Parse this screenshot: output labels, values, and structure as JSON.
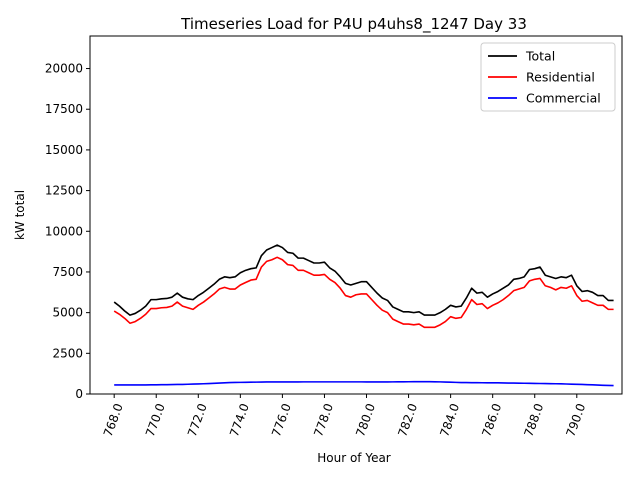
{
  "chart_data": {
    "type": "line",
    "title": "Timeseries Load for P4U p4uhs8_1247  Day 33",
    "xlabel": "Hour of Year",
    "ylabel": "kW total",
    "xlim": [
      766.85,
      792.15
    ],
    "ylim": [
      0,
      22000
    ],
    "xticks": [
      "768.0",
      "770.0",
      "772.0",
      "774.0",
      "776.0",
      "778.0",
      "780.0",
      "782.0",
      "784.0",
      "786.0",
      "788.0",
      "790.0"
    ],
    "xtick_values": [
      768,
      770,
      772,
      774,
      776,
      778,
      780,
      782,
      784,
      786,
      788,
      790
    ],
    "yticks": [
      "0",
      "2500",
      "5000",
      "7500",
      "10000",
      "12500",
      "15000",
      "17500",
      "20000"
    ],
    "ytick_values": [
      0,
      2500,
      5000,
      7500,
      10000,
      12500,
      15000,
      17500,
      20000
    ],
    "legend_position": "top-right",
    "x": [
      768.0,
      768.25,
      768.5,
      768.75,
      769.0,
      769.25,
      769.5,
      769.75,
      770.0,
      770.25,
      770.5,
      770.75,
      771.0,
      771.25,
      771.5,
      771.75,
      772.0,
      772.25,
      772.5,
      772.75,
      773.0,
      773.25,
      773.5,
      773.75,
      774.0,
      774.25,
      774.5,
      774.75,
      775.0,
      775.25,
      775.5,
      775.75,
      776.0,
      776.25,
      776.5,
      776.75,
      777.0,
      777.25,
      777.5,
      777.75,
      778.0,
      778.25,
      778.5,
      778.75,
      779.0,
      779.25,
      779.5,
      779.75,
      780.0,
      780.25,
      780.5,
      780.75,
      781.0,
      781.25,
      781.5,
      781.75,
      782.0,
      782.25,
      782.5,
      782.75,
      783.0,
      783.25,
      783.5,
      783.75,
      784.0,
      784.25,
      784.5,
      784.75,
      785.0,
      785.25,
      785.5,
      785.75,
      786.0,
      786.25,
      786.5,
      786.75,
      787.0,
      787.25,
      787.5,
      787.75,
      788.0,
      788.25,
      788.5,
      788.75,
      789.0,
      789.25,
      789.5,
      789.75,
      790.0,
      790.25,
      790.5,
      790.75,
      791.0,
      791.25,
      791.5,
      791.75
    ],
    "series": [
      {
        "name": "Total",
        "color": "#000000",
        "values": [
          5650,
          5400,
          5100,
          4850,
          4950,
          5150,
          5400,
          5800,
          5800,
          5850,
          5870,
          5950,
          6200,
          5950,
          5850,
          5800,
          6050,
          6250,
          6500,
          6750,
          7050,
          7200,
          7150,
          7200,
          7450,
          7600,
          7700,
          7750,
          8500,
          8850,
          9000,
          9150,
          9000,
          8700,
          8650,
          8350,
          8350,
          8200,
          8050,
          8050,
          8100,
          7750,
          7550,
          7200,
          6800,
          6700,
          6800,
          6900,
          6900,
          6550,
          6200,
          5900,
          5750,
          5350,
          5200,
          5050,
          5050,
          5000,
          5050,
          4850,
          4850,
          4850,
          5000,
          5200,
          5450,
          5350,
          5400,
          5900,
          6500,
          6200,
          6250,
          5950,
          6150,
          6300,
          6500,
          6700,
          7050,
          7100,
          7200,
          7650,
          7700,
          7800,
          7300,
          7200,
          7100,
          7200,
          7150,
          7300,
          6650,
          6300,
          6350,
          6250,
          6050,
          6050,
          5750,
          5750
        ]
      },
      {
        "name": "Residential",
        "color": "#ff0000",
        "values": [
          5100,
          4900,
          4650,
          4350,
          4450,
          4650,
          4900,
          5250,
          5250,
          5300,
          5320,
          5400,
          5650,
          5400,
          5300,
          5200,
          5450,
          5650,
          5900,
          6150,
          6450,
          6550,
          6450,
          6450,
          6700,
          6850,
          7000,
          7050,
          7800,
          8150,
          8250,
          8400,
          8250,
          7950,
          7900,
          7600,
          7600,
          7450,
          7300,
          7300,
          7350,
          7050,
          6850,
          6500,
          6050,
          5950,
          6100,
          6150,
          6150,
          5800,
          5450,
          5150,
          5000,
          4600,
          4450,
          4300,
          4300,
          4250,
          4300,
          4100,
          4100,
          4100,
          4250,
          4450,
          4750,
          4650,
          4700,
          5200,
          5800,
          5500,
          5550,
          5250,
          5450,
          5600,
          5800,
          6050,
          6350,
          6450,
          6550,
          6950,
          7050,
          7100,
          6650,
          6550,
          6400,
          6550,
          6500,
          6650,
          6050,
          5700,
          5750,
          5600,
          5450,
          5450,
          5200,
          5200
        ]
      },
      {
        "name": "Commercial",
        "color": "#0000ff",
        "values": [
          560,
          560,
          560,
          560,
          560,
          560,
          560,
          565,
          565,
          570,
          575,
          580,
          585,
          590,
          600,
          610,
          620,
          630,
          640,
          655,
          670,
          685,
          700,
          710,
          715,
          720,
          725,
          730,
          735,
          740,
          740,
          740,
          740,
          740,
          740,
          742,
          745,
          745,
          745,
          745,
          745,
          745,
          745,
          745,
          745,
          745,
          745,
          745,
          742,
          740,
          740,
          740,
          742,
          745,
          748,
          750,
          752,
          755,
          755,
          755,
          755,
          750,
          745,
          735,
          725,
          715,
          705,
          700,
          698,
          695,
          692,
          690,
          688,
          685,
          680,
          675,
          670,
          665,
          660,
          655,
          650,
          645,
          640,
          635,
          630,
          625,
          615,
          605,
          595,
          585,
          575,
          565,
          550,
          535,
          525,
          520
        ]
      }
    ]
  }
}
